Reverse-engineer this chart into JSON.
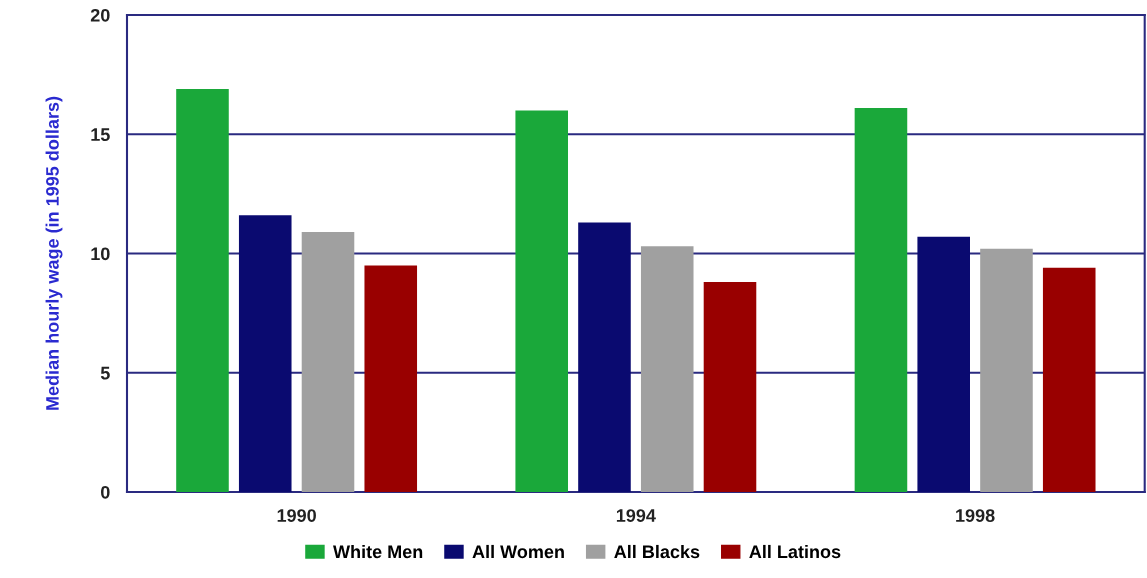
{
  "chart_data": {
    "type": "bar",
    "ylabel": "Median hourly wage (in 1995 dollars)",
    "categories": [
      "1990",
      "1994",
      "1998"
    ],
    "series": [
      {
        "name": "White Men",
        "color": "#1aa83a",
        "values": [
          16.9,
          16.0,
          16.1
        ]
      },
      {
        "name": "All Women",
        "color": "#0a0a70",
        "values": [
          11.6,
          11.3,
          10.7
        ]
      },
      {
        "name": "All Blacks",
        "color": "#a0a0a0",
        "values": [
          10.9,
          10.3,
          10.2
        ]
      },
      {
        "name": "All Latinos",
        "color": "#990000",
        "values": [
          9.5,
          8.8,
          9.4
        ]
      }
    ],
    "ylim": [
      0,
      20
    ],
    "yticks": [
      0,
      5,
      10,
      15,
      20
    ],
    "grid": "y",
    "legend": "bottom"
  }
}
